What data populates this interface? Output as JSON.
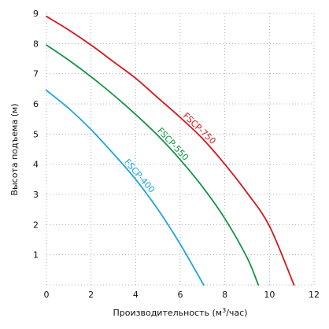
{
  "chart_data": {
    "type": "line",
    "title": "",
    "xlabel": "Производительность (м",
    "xlabel_sup": "3",
    "xlabel_tail": "/час)",
    "ylabel": "Высота подъема (м)",
    "xlim": [
      0,
      12
    ],
    "ylim": [
      0,
      9
    ],
    "x_ticks": [
      0,
      2,
      4,
      6,
      8,
      10,
      12
    ],
    "y_ticks": [
      0,
      1,
      2,
      3,
      4,
      5,
      6,
      7,
      8,
      9
    ],
    "y_tick_labels": [
      "1",
      "2",
      "3",
      "4",
      "5",
      "6",
      "7",
      "8",
      "9"
    ],
    "grid": true,
    "series": [
      {
        "name": "FSCP-750",
        "color": "#d7151b",
        "x": [
          0,
          1,
          2,
          3,
          4,
          5,
          6,
          7,
          8,
          9,
          10,
          11.1
        ],
        "y": [
          8.9,
          8.45,
          7.95,
          7.4,
          6.85,
          6.2,
          5.55,
          4.85,
          4.0,
          3.05,
          1.95,
          0
        ]
      },
      {
        "name": "FSCP-550",
        "color": "#139444",
        "x": [
          0,
          1,
          2,
          3,
          4,
          5,
          6,
          7,
          8,
          9,
          9.5
        ],
        "y": [
          7.95,
          7.45,
          6.9,
          6.3,
          5.65,
          4.95,
          4.15,
          3.25,
          2.2,
          0.9,
          0
        ]
      },
      {
        "name": "FSCP-400",
        "color": "#1ea5e0",
        "x": [
          0,
          1,
          2,
          3,
          4,
          5,
          6,
          7.05
        ],
        "y": [
          6.45,
          5.85,
          5.15,
          4.35,
          3.5,
          2.5,
          1.35,
          0
        ]
      }
    ]
  }
}
